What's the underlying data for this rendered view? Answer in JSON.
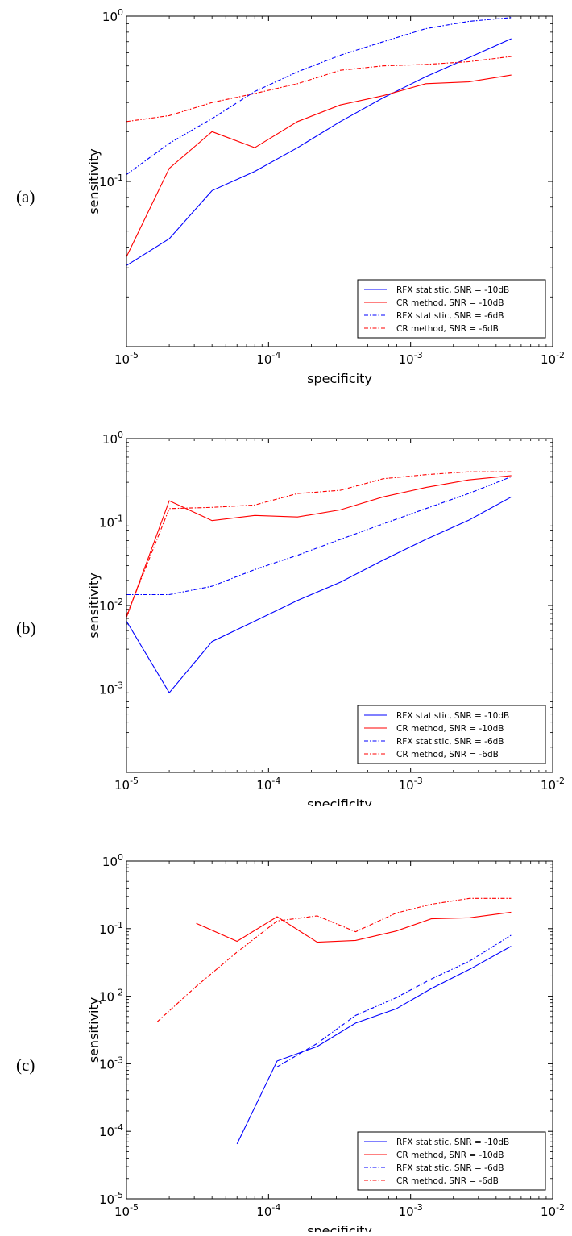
{
  "chart_data": [
    {
      "panel": "(a)",
      "type": "line",
      "xlabel": "specificity",
      "ylabel": "sensitivity",
      "xscale": "log",
      "yscale": "log",
      "xlim": [
        1e-05,
        0.01
      ],
      "ylim": [
        0.01,
        1
      ],
      "xticks": [
        {
          "base": "10",
          "exp": "-5"
        },
        {
          "base": "10",
          "exp": "-4"
        },
        {
          "base": "10",
          "exp": "-3"
        },
        {
          "base": "10",
          "exp": "-2"
        }
      ],
      "yticks": [
        {
          "base": "10",
          "exp": "-1"
        },
        {
          "base": "10",
          "exp": "0"
        }
      ],
      "legend_position": "lower-right",
      "series": [
        {
          "name": "RFX statistic, SNR = -10dB",
          "color": "#0000ff",
          "dash": "solid",
          "points": [
            [
              1e-05,
              0.031
            ],
            [
              2e-05,
              0.045
            ],
            [
              4e-05,
              0.088
            ],
            [
              8e-05,
              0.115
            ],
            [
              0.00016,
              0.16
            ],
            [
              0.00032,
              0.23
            ],
            [
              0.00064,
              0.32
            ],
            [
              0.00128,
              0.43
            ],
            [
              0.00256,
              0.56
            ],
            [
              0.00512,
              0.73
            ]
          ]
        },
        {
          "name": "CR method, SNR = -10dB",
          "color": "#ff0000",
          "dash": "solid",
          "points": [
            [
              1e-05,
              0.035
            ],
            [
              2e-05,
              0.12
            ],
            [
              4e-05,
              0.2
            ],
            [
              8e-05,
              0.16
            ],
            [
              0.00016,
              0.23
            ],
            [
              0.00032,
              0.29
            ],
            [
              0.00064,
              0.33
            ],
            [
              0.00128,
              0.39
            ],
            [
              0.00256,
              0.4
            ],
            [
              0.00512,
              0.44
            ]
          ]
        },
        {
          "name": "RFX statistic, SNR = -6dB",
          "color": "#0000ff",
          "dash": "dashdot",
          "points": [
            [
              1e-05,
              0.11
            ],
            [
              2e-05,
              0.17
            ],
            [
              4e-05,
              0.24
            ],
            [
              8e-05,
              0.35
            ],
            [
              0.00016,
              0.46
            ],
            [
              0.00032,
              0.58
            ],
            [
              0.00064,
              0.7
            ],
            [
              0.00128,
              0.84
            ],
            [
              0.00256,
              0.93
            ],
            [
              0.00512,
              0.98
            ]
          ]
        },
        {
          "name": "CR method, SNR = -6dB",
          "color": "#ff0000",
          "dash": "dashdot",
          "points": [
            [
              1e-05,
              0.23
            ],
            [
              2e-05,
              0.25
            ],
            [
              4e-05,
              0.3
            ],
            [
              8e-05,
              0.34
            ],
            [
              0.00016,
              0.39
            ],
            [
              0.00032,
              0.47
            ],
            [
              0.00064,
              0.5
            ],
            [
              0.00128,
              0.51
            ],
            [
              0.00256,
              0.53
            ],
            [
              0.00512,
              0.57
            ]
          ]
        }
      ]
    },
    {
      "panel": "(b)",
      "type": "line",
      "xlabel": "specificity",
      "ylabel": "sensitivity",
      "xscale": "log",
      "yscale": "log",
      "xlim": [
        1e-05,
        0.01
      ],
      "ylim": [
        0.0001,
        1
      ],
      "xticks": [
        {
          "base": "10",
          "exp": "-5"
        },
        {
          "base": "10",
          "exp": "-4"
        },
        {
          "base": "10",
          "exp": "-3"
        },
        {
          "base": "10",
          "exp": "-2"
        }
      ],
      "yticks": [
        {
          "base": "10",
          "exp": "-3"
        },
        {
          "base": "10",
          "exp": "-2"
        },
        {
          "base": "10",
          "exp": "-1"
        },
        {
          "base": "10",
          "exp": "0"
        }
      ],
      "legend_position": "lower-right",
      "series": [
        {
          "name": "RFX statistic, SNR = -10dB",
          "color": "#0000ff",
          "dash": "solid",
          "points": [
            [
              1e-05,
              0.0065
            ],
            [
              2e-05,
              0.0009
            ],
            [
              4e-05,
              0.0037
            ],
            [
              8e-05,
              0.0065
            ],
            [
              0.00016,
              0.0115
            ],
            [
              0.00032,
              0.019
            ],
            [
              0.00064,
              0.035
            ],
            [
              0.00128,
              0.062
            ],
            [
              0.00256,
              0.105
            ],
            [
              0.00512,
              0.2
            ]
          ]
        },
        {
          "name": "CR method, SNR = -10dB",
          "color": "#ff0000",
          "dash": "solid",
          "points": [
            [
              1e-05,
              0.0072
            ],
            [
              2e-05,
              0.18
            ],
            [
              4e-05,
              0.104
            ],
            [
              8e-05,
              0.12
            ],
            [
              0.00016,
              0.115
            ],
            [
              0.00032,
              0.14
            ],
            [
              0.00064,
              0.2
            ],
            [
              0.00128,
              0.26
            ],
            [
              0.00256,
              0.32
            ],
            [
              0.00512,
              0.36
            ]
          ]
        },
        {
          "name": "RFX statistic, SNR = -6dB",
          "color": "#0000ff",
          "dash": "dashdot",
          "points": [
            [
              1e-05,
              0.0135
            ],
            [
              2e-05,
              0.0135
            ],
            [
              4e-05,
              0.017
            ],
            [
              8e-05,
              0.027
            ],
            [
              0.00016,
              0.04
            ],
            [
              0.00032,
              0.062
            ],
            [
              0.00064,
              0.095
            ],
            [
              0.00128,
              0.145
            ],
            [
              0.00256,
              0.22
            ],
            [
              0.00512,
              0.35
            ]
          ]
        },
        {
          "name": "CR method, SNR = -6dB",
          "color": "#ff0000",
          "dash": "dashdot",
          "points": [
            [
              1e-05,
              0.0075
            ],
            [
              2e-05,
              0.145
            ],
            [
              4e-05,
              0.15
            ],
            [
              8e-05,
              0.16
            ],
            [
              0.00016,
              0.22
            ],
            [
              0.00032,
              0.24
            ],
            [
              0.00064,
              0.33
            ],
            [
              0.00128,
              0.37
            ],
            [
              0.00256,
              0.4
            ],
            [
              0.00512,
              0.4
            ]
          ]
        }
      ]
    },
    {
      "panel": "(c)",
      "type": "line",
      "xlabel": "specificity",
      "ylabel": "sensitivity",
      "xscale": "log",
      "yscale": "log",
      "xlim": [
        1e-05,
        0.01
      ],
      "ylim": [
        1e-05,
        1
      ],
      "xticks": [
        {
          "base": "10",
          "exp": "-5"
        },
        {
          "base": "10",
          "exp": "-4"
        },
        {
          "base": "10",
          "exp": "-3"
        },
        {
          "base": "10",
          "exp": "-2"
        }
      ],
      "yticks": [
        {
          "base": "10",
          "exp": "-5"
        },
        {
          "base": "10",
          "exp": "-4"
        },
        {
          "base": "10",
          "exp": "-3"
        },
        {
          "base": "10",
          "exp": "-2"
        },
        {
          "base": "10",
          "exp": "-1"
        },
        {
          "base": "10",
          "exp": "0"
        }
      ],
      "legend_position": "lower-right",
      "series": [
        {
          "name": "RFX statistic, SNR = -10dB",
          "color": "#0000ff",
          "dash": "solid",
          "points": [
            [
              6e-05,
              6.5e-05
            ],
            [
              0.000115,
              0.0011
            ],
            [
              0.00022,
              0.0018
            ],
            [
              0.00041,
              0.004
            ],
            [
              0.00079,
              0.0065
            ],
            [
              0.0014,
              0.013
            ],
            [
              0.0026,
              0.025
            ],
            [
              0.0051,
              0.055
            ]
          ]
        },
        {
          "name": "CR method, SNR = -10dB",
          "color": "#ff0000",
          "dash": "solid",
          "points": [
            [
              3.1e-05,
              0.12
            ],
            [
              6e-05,
              0.065
            ],
            [
              0.000115,
              0.15
            ],
            [
              0.00022,
              0.063
            ],
            [
              0.00041,
              0.067
            ],
            [
              0.00079,
              0.092
            ],
            [
              0.0014,
              0.14
            ],
            [
              0.0026,
              0.145
            ],
            [
              0.0051,
              0.175
            ]
          ]
        },
        {
          "name": "RFX statistic, SNR = -6dB",
          "color": "#0000ff",
          "dash": "dashdot",
          "points": [
            [
              0.000115,
              0.0009
            ],
            [
              0.00022,
              0.002
            ],
            [
              0.00041,
              0.0052
            ],
            [
              0.00079,
              0.0095
            ],
            [
              0.0014,
              0.018
            ],
            [
              0.0026,
              0.033
            ],
            [
              0.0051,
              0.08
            ]
          ]
        },
        {
          "name": "CR method, SNR = -6dB",
          "color": "#ff0000",
          "dash": "dashdot",
          "points": [
            [
              1.65e-05,
              0.0042
            ],
            [
              3.1e-05,
              0.014
            ],
            [
              6e-05,
              0.045
            ],
            [
              0.000115,
              0.13
            ],
            [
              0.00022,
              0.155
            ],
            [
              0.00041,
              0.09
            ],
            [
              0.00079,
              0.17
            ],
            [
              0.0014,
              0.23
            ],
            [
              0.0026,
              0.28
            ],
            [
              0.0051,
              0.28
            ]
          ]
        }
      ]
    }
  ]
}
